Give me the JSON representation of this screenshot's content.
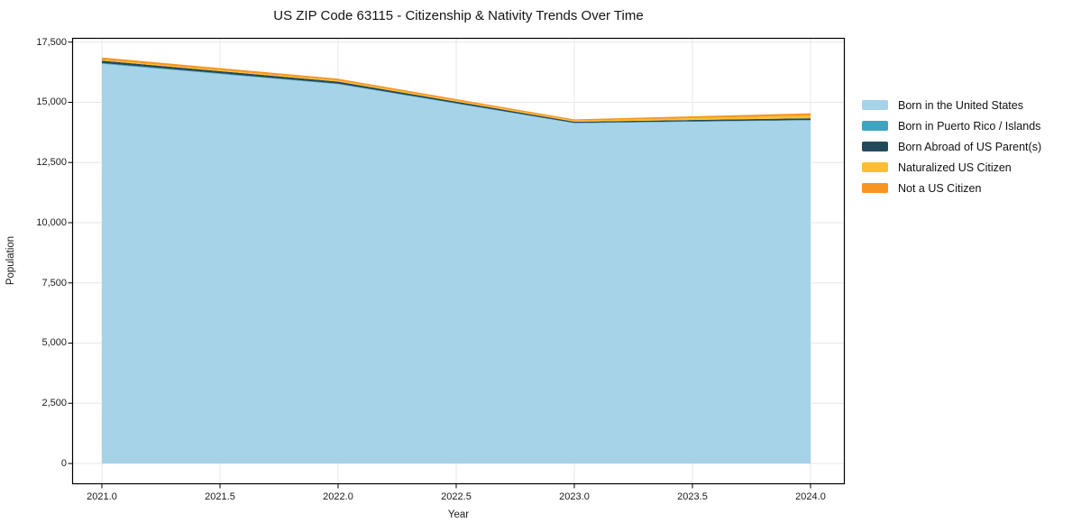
{
  "title": "US ZIP Code 63115 - Citizenship & Nativity Trends Over Time",
  "axes": {
    "xlabel": "Year",
    "ylabel": "Population"
  },
  "colors": {
    "grid": "#e7e7e7",
    "spine": "#000000",
    "background": "#ffffff",
    "text": "#1a1a1a"
  },
  "chart_data": {
    "type": "area",
    "stacked": true,
    "title": "US ZIP Code 63115 - Citizenship & Nativity Trends Over Time",
    "xlabel": "Year",
    "ylabel": "Population",
    "x": [
      2021,
      2022,
      2023,
      2024
    ],
    "series": [
      {
        "name": "Born in the United States",
        "color": "#a6d3e8",
        "values": [
          16600,
          15750,
          14130,
          14250
        ]
      },
      {
        "name": "Born in Puerto Rico / Islands",
        "color": "#3fa5bf",
        "values": [
          30,
          25,
          15,
          20
        ]
      },
      {
        "name": "Born Abroad of US Parent(s)",
        "color": "#25495c",
        "values": [
          100,
          85,
          50,
          70
        ]
      },
      {
        "name": "Naturalized US Citizen",
        "color": "#fcc02e",
        "values": [
          40,
          45,
          40,
          110
        ]
      },
      {
        "name": "Not a US Citizen",
        "color": "#f79523",
        "values": [
          90,
          75,
          55,
          95
        ]
      }
    ],
    "xticks": [
      2021.0,
      2021.5,
      2022.0,
      2022.5,
      2023.0,
      2023.5,
      2024.0
    ],
    "yticks": [
      0,
      2500,
      5000,
      7500,
      10000,
      12500,
      15000,
      17500
    ],
    "xlim": [
      2020.874,
      2024.145
    ],
    "ylim": [
      -861,
      17676
    ],
    "grid": true,
    "legend_position": "right"
  }
}
